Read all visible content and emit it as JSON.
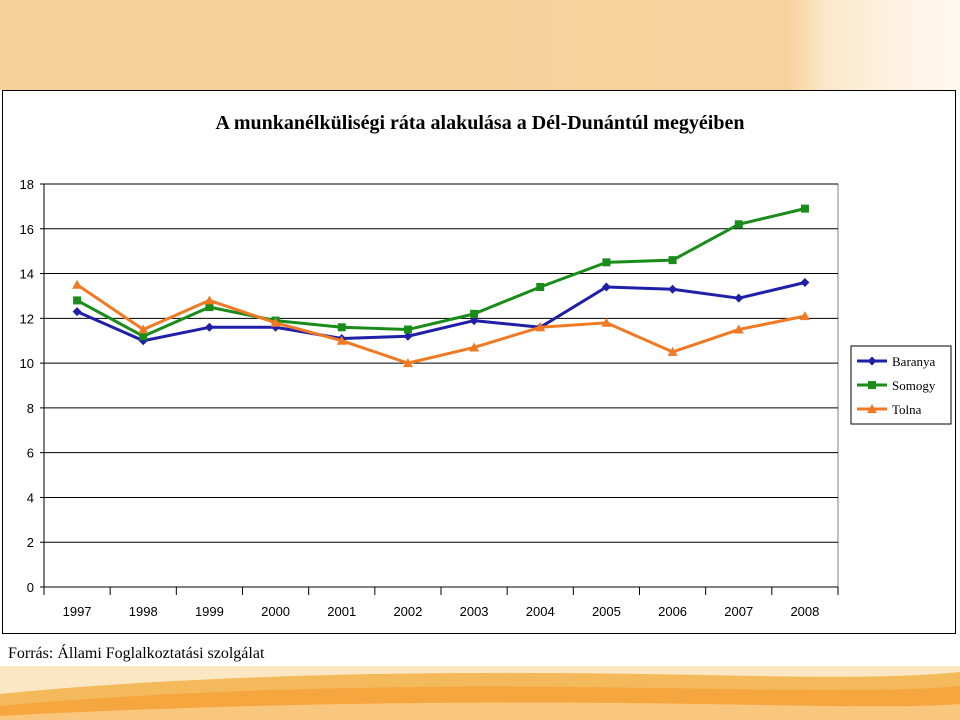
{
  "header": {
    "band_color": "#f6d09a"
  },
  "chart_data": {
    "type": "line",
    "title": "A munkanélküliségi ráta alakulása a Dél-Dunántúl megyéiben",
    "categories": [
      "1997",
      "1998",
      "1999",
      "2000",
      "2001",
      "2002",
      "2003",
      "2004",
      "2005",
      "2006",
      "2007",
      "2008"
    ],
    "ylim": [
      0,
      18
    ],
    "yticks": [
      "0",
      "2",
      "4",
      "6",
      "8",
      "10",
      "12",
      "14",
      "16",
      "18"
    ],
    "grid": true,
    "legend_position": "right",
    "series": [
      {
        "name": "Baranya",
        "color": "#1f1fa8",
        "marker": "diamond",
        "values": [
          12.3,
          11.0,
          11.6,
          11.6,
          11.1,
          11.2,
          11.9,
          11.6,
          13.4,
          13.3,
          12.9,
          13.6
        ]
      },
      {
        "name": "Somogy",
        "color": "#1a8c1a",
        "marker": "square",
        "values": [
          12.8,
          11.2,
          12.5,
          11.9,
          11.6,
          11.5,
          12.2,
          13.4,
          14.5,
          14.6,
          16.2,
          16.9
        ]
      },
      {
        "name": "Tolna",
        "color": "#f07a24",
        "marker": "triangle",
        "values": [
          13.5,
          11.5,
          12.8,
          11.8,
          11.0,
          10.0,
          10.7,
          11.6,
          11.8,
          10.5,
          11.5,
          12.1
        ]
      }
    ]
  },
  "footer": {
    "source_text": "Forrás: Állami Foglalkoztatási szolgálat"
  }
}
